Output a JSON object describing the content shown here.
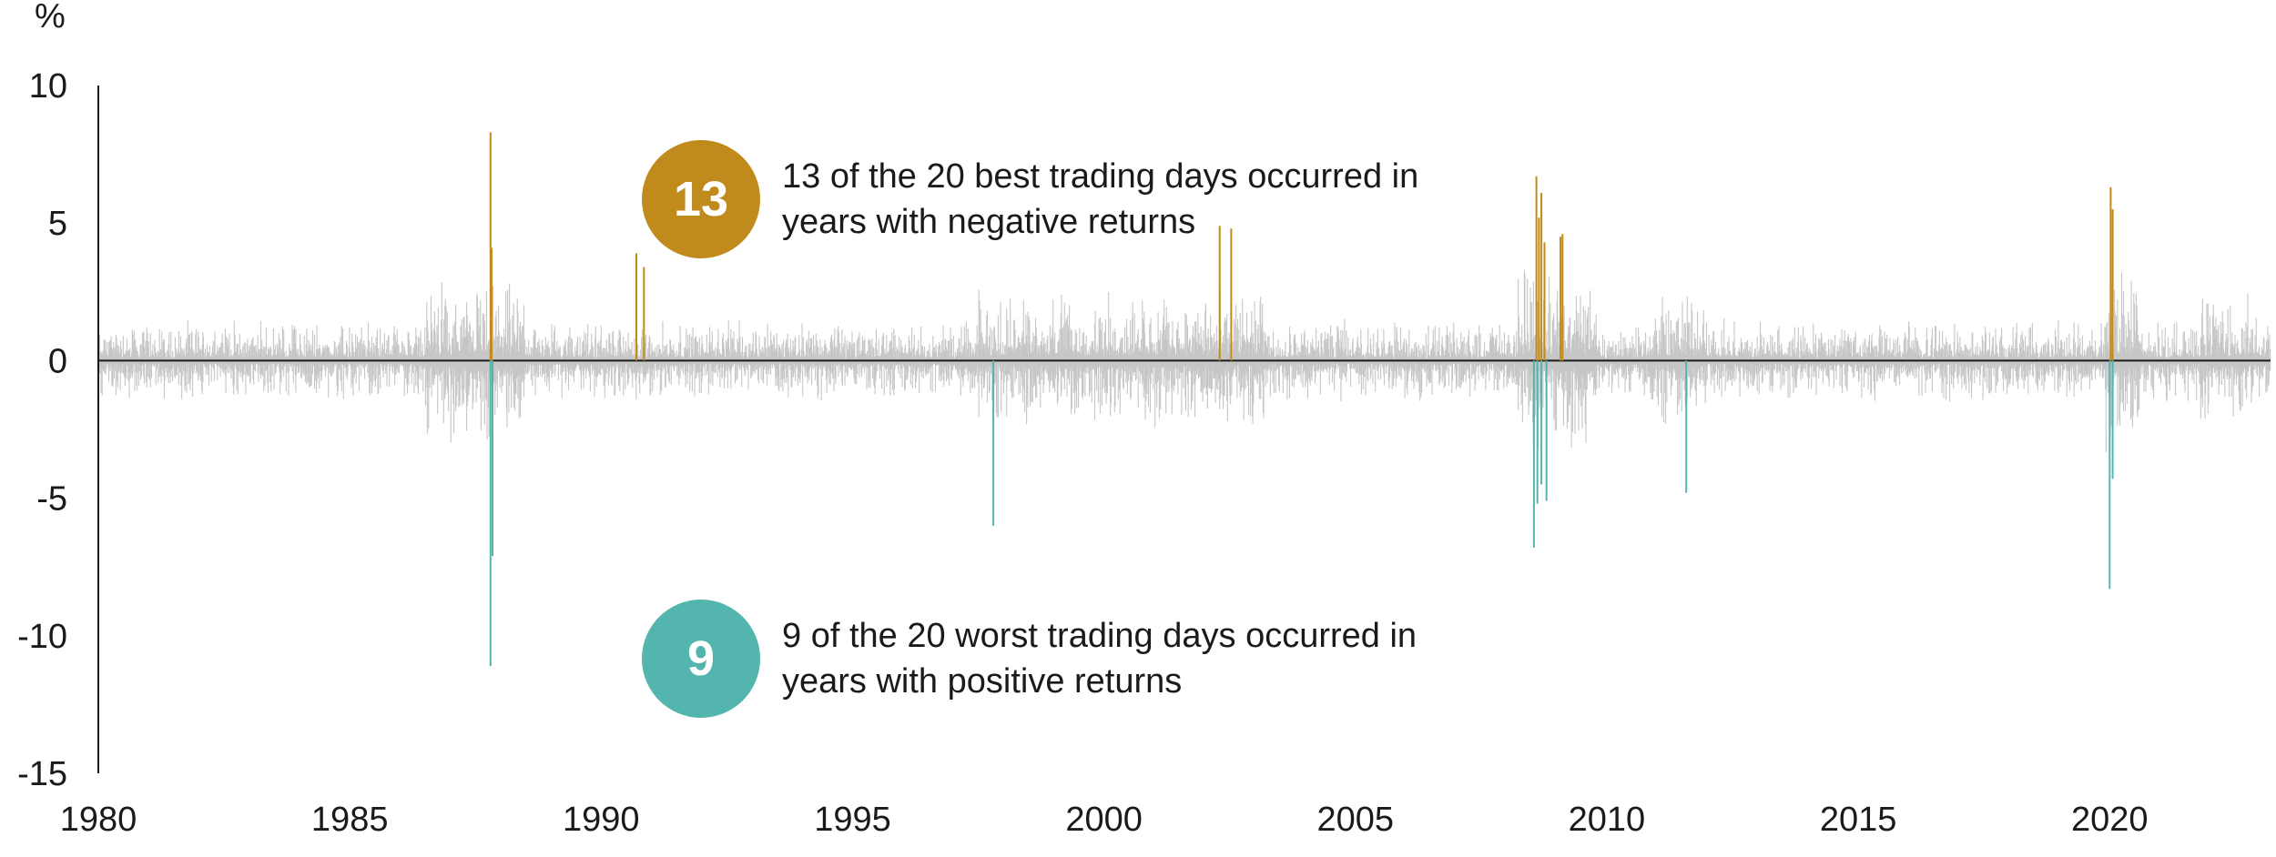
{
  "chart_data": {
    "type": "bar",
    "ylabel": "%",
    "ylim": [
      -15,
      10
    ],
    "xlim": [
      1980,
      2023.2
    ],
    "yticks": [
      "10",
      "5",
      "0",
      "-5",
      "-10",
      "-15"
    ],
    "xticks": [
      "1980",
      "1985",
      "1990",
      "1995",
      "2000",
      "2005",
      "2010",
      "2015",
      "2020"
    ],
    "grid": false,
    "colors": {
      "typical": "#c6c6c6",
      "best": "#c08a1c",
      "worst": "#53b5ad",
      "axis": "#1a1a1a"
    },
    "series": [
      {
        "role": "best",
        "points": [
          {
            "x": 1987.8,
            "y": 8.3
          },
          {
            "x": 1987.82,
            "y": 4.1
          },
          {
            "x": 1990.7,
            "y": 3.9
          },
          {
            "x": 1990.85,
            "y": 3.4
          },
          {
            "x": 2002.3,
            "y": 4.9
          },
          {
            "x": 2002.53,
            "y": 4.8
          },
          {
            "x": 2008.6,
            "y": 6.7
          },
          {
            "x": 2008.65,
            "y": 5.2
          },
          {
            "x": 2008.7,
            "y": 6.1
          },
          {
            "x": 2008.76,
            "y": 4.3
          },
          {
            "x": 2009.08,
            "y": 4.5
          },
          {
            "x": 2009.12,
            "y": 4.6
          },
          {
            "x": 2020.02,
            "y": 6.3
          },
          {
            "x": 2020.06,
            "y": 5.5
          }
        ]
      },
      {
        "role": "worst",
        "points": [
          {
            "x": 1987.8,
            "y": -11.1
          },
          {
            "x": 1987.84,
            "y": -7.1
          },
          {
            "x": 1997.8,
            "y": -6.0
          },
          {
            "x": 2008.55,
            "y": -6.8
          },
          {
            "x": 2008.62,
            "y": -5.2
          },
          {
            "x": 2008.7,
            "y": -4.5
          },
          {
            "x": 2008.8,
            "y": -5.1
          },
          {
            "x": 2011.58,
            "y": -4.8
          },
          {
            "x": 2020.0,
            "y": -8.3
          },
          {
            "x": 2020.06,
            "y": -4.3
          }
        ]
      }
    ]
  },
  "annotations": {
    "best": {
      "badge": "13",
      "text_line1": "13 of the 20 best trading days occurred in",
      "text_line2": "years with negative returns"
    },
    "worst": {
      "badge": "9",
      "text_line1": "9 of the 20 worst trading days occurred in",
      "text_line2": "years with positive returns"
    }
  }
}
